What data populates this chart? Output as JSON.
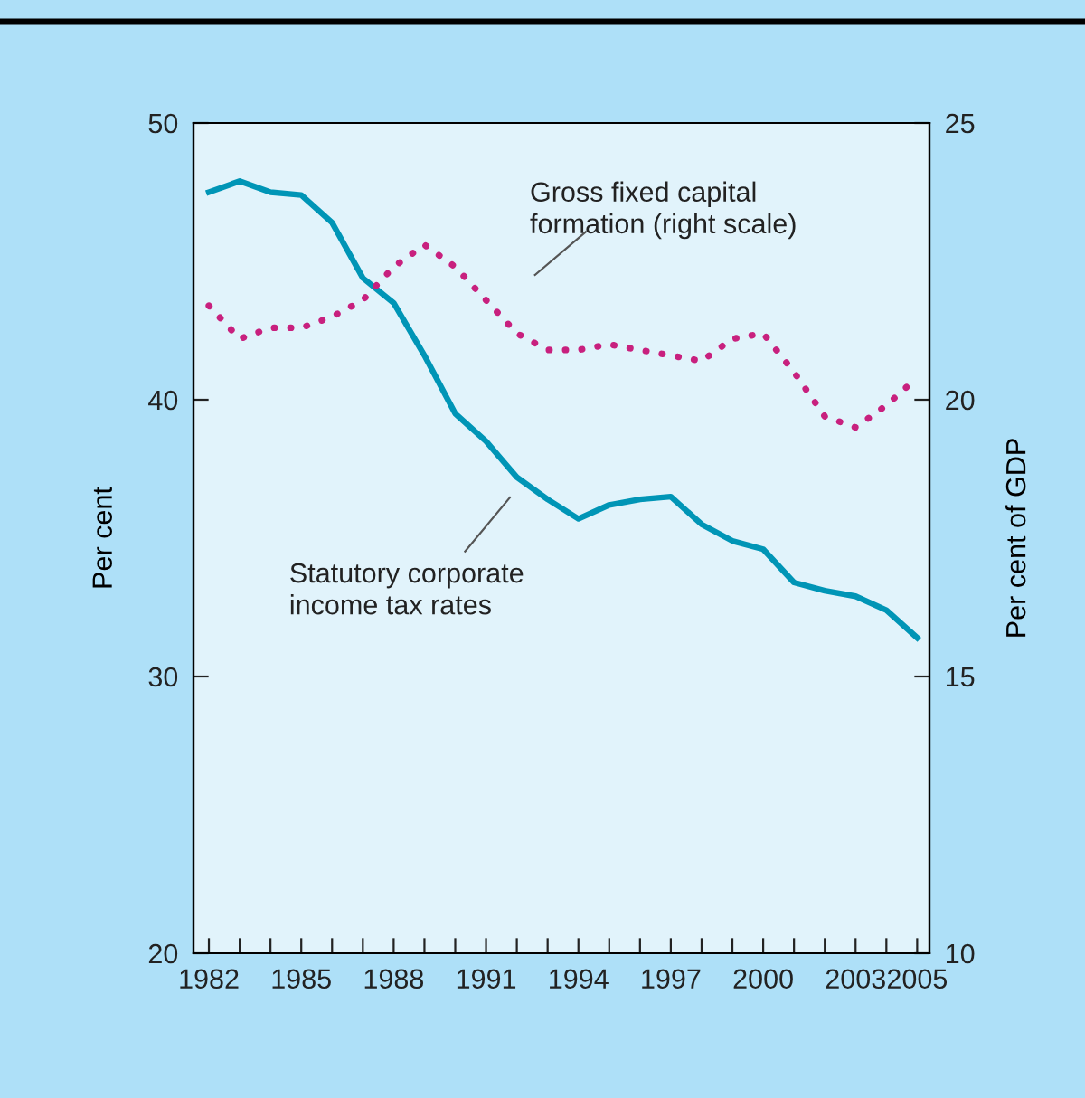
{
  "chart_data": {
    "type": "line",
    "ylabel": "Per cent",
    "y2label": "Per cent of GDP",
    "x": [
      1982,
      1983,
      1984,
      1985,
      1986,
      1987,
      1988,
      1989,
      1990,
      1991,
      1992,
      1993,
      1994,
      1995,
      1996,
      1997,
      1998,
      1999,
      2000,
      2001,
      2002,
      2003,
      2004,
      2005
    ],
    "series": [
      {
        "color": "#0095b6",
        "line_style": "solid",
        "values": [
          47.5,
          47.9,
          47.5,
          47.4,
          46.4,
          44.4,
          43.5,
          41.6,
          39.5,
          38.5,
          37.2,
          36.4,
          35.7,
          36.2,
          36.4,
          36.5,
          35.5,
          34.9,
          34.6,
          33.4,
          33.1,
          32.9,
          32.4,
          31.4
        ]
      },
      {
        "color": "#c8207e",
        "line_style": "dotted",
        "axis": "y2",
        "values": [
          21.7,
          21.1,
          21.3,
          21.3,
          21.5,
          21.8,
          22.4,
          22.8,
          22.4,
          21.8,
          21.2,
          20.9,
          20.9,
          21.0,
          20.9,
          20.8,
          20.7,
          21.1,
          21.2,
          20.5,
          19.7,
          19.5,
          19.9,
          20.4
        ]
      }
    ],
    "annotations": [
      "Statutory corporate\nincome tax rates",
      "Gross fixed capital\nformation (right scale)"
    ],
    "xlim": [
      1981.5,
      2005.4
    ],
    "xticks": [
      1982,
      {
        "value": 1983,
        "label": null
      },
      {
        "value": 1984,
        "label": null
      },
      1985,
      {
        "value": 1986,
        "label": null
      },
      {
        "value": 1987,
        "label": null
      },
      1988,
      {
        "value": 1989,
        "label": null
      },
      {
        "value": 1990,
        "label": null
      },
      1991,
      {
        "value": 1992,
        "label": null
      },
      {
        "value": 1993,
        "label": null
      },
      1994,
      {
        "value": 1995,
        "label": null
      },
      {
        "value": 1996,
        "label": null
      },
      1997,
      {
        "value": 1998,
        "label": null
      },
      {
        "value": 1999,
        "label": null
      },
      2000,
      {
        "value": 2001,
        "label": null
      },
      {
        "value": 2002,
        "label": null
      },
      2003,
      {
        "value": 2004,
        "label": null
      },
      2005
    ],
    "ylim": [
      20,
      50
    ],
    "yticks": [
      20,
      30,
      40,
      50
    ],
    "y2lim": [
      10,
      25
    ],
    "y2ticks": [
      10,
      15,
      20,
      25
    ],
    "grid": false,
    "legend": false
  }
}
